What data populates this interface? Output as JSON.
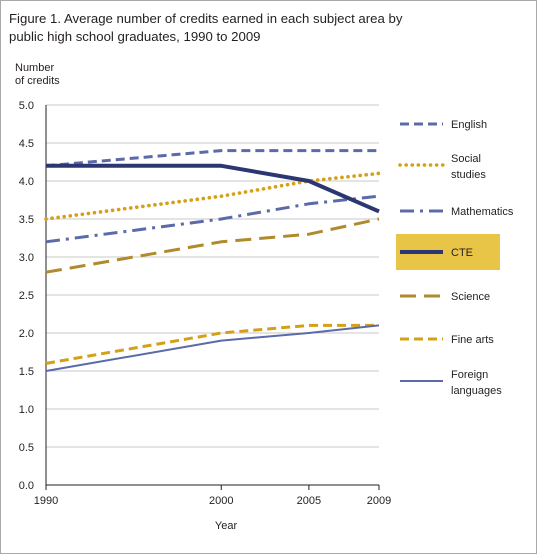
{
  "colors": {
    "navy": "#2b3673",
    "slate": "#5b6aa8",
    "gold": "#d4a017",
    "goldDark": "#b08a2c",
    "highlight": "#e9c547",
    "grid": "#c8c8c8",
    "axis": "#231f20",
    "frame": "#a9a9a9"
  },
  "chart_data": {
    "type": "line",
    "title": "Figure 1. Average number of credits earned in each subject area by public high school graduates, 1990 to 2009",
    "title_lines": [
      "Figure 1. Average number of credits earned in each subject area by",
      "public high school graduates, 1990 to 2009"
    ],
    "ylabel_lines": [
      "Number",
      "of credits"
    ],
    "xlabel": "Year",
    "x": [
      1990,
      2000,
      2005,
      2009
    ],
    "xticks": [
      "1990",
      "2000",
      "2005",
      "2009"
    ],
    "yticks": [
      "0.0",
      "0.5",
      "1.0",
      "1.5",
      "2.0",
      "2.5",
      "3.0",
      "3.5",
      "4.0",
      "4.5",
      "5.0"
    ],
    "ylim": [
      0,
      5
    ],
    "grid": true,
    "legend_position": "right",
    "series": [
      {
        "name": "English",
        "values": [
          4.2,
          4.4,
          4.4,
          4.4
        ],
        "color": "#5b6aa8",
        "style": "dash",
        "legend_lines": [
          "English"
        ]
      },
      {
        "name": "Social studies",
        "values": [
          3.5,
          3.8,
          4.0,
          4.1
        ],
        "color": "#d4a017",
        "style": "dot",
        "legend_lines": [
          "Social",
          "studies"
        ]
      },
      {
        "name": "Mathematics",
        "values": [
          3.2,
          3.5,
          3.7,
          3.8
        ],
        "color": "#5b6aa8",
        "style": "dashdot",
        "legend_lines": [
          "Mathematics"
        ]
      },
      {
        "name": "CTE",
        "values": [
          4.2,
          4.2,
          4.0,
          3.6
        ],
        "color": "#2b3673",
        "style": "solidbold",
        "legend_lines": [
          "CTE"
        ],
        "highlight": true
      },
      {
        "name": "Science",
        "values": [
          2.8,
          3.2,
          3.3,
          3.5
        ],
        "color": "#b08a2c",
        "style": "longdash",
        "legend_lines": [
          "Science"
        ]
      },
      {
        "name": "Fine arts",
        "values": [
          1.6,
          2.0,
          2.1,
          2.1
        ],
        "color": "#d4a017",
        "style": "dash",
        "legend_lines": [
          "Fine arts"
        ]
      },
      {
        "name": "Foreign languages",
        "values": [
          1.5,
          1.9,
          2.0,
          2.1
        ],
        "color": "#5b6aa8",
        "style": "solid",
        "legend_lines": [
          "Foreign",
          "languages"
        ]
      }
    ]
  }
}
